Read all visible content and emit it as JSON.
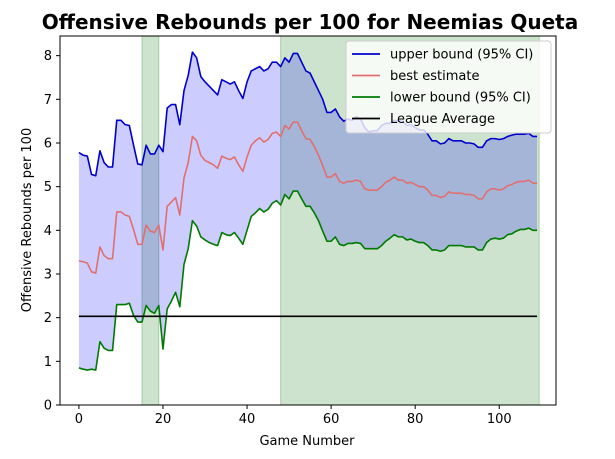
{
  "chart_data": {
    "type": "line",
    "title": "Offensive Rebounds per 100 for Neemias Queta",
    "xlabel": "Game Number",
    "ylabel": "Offensive Rebounds per 100",
    "xlim": [
      -4.5,
      113.5
    ],
    "ylim": [
      0,
      8.45
    ],
    "xticks": [
      0,
      20,
      40,
      60,
      80,
      100
    ],
    "yticks": [
      0,
      1,
      2,
      3,
      4,
      5,
      6,
      7,
      8
    ],
    "grid": false,
    "legend_position": "top-right",
    "x": [
      0,
      1,
      2,
      3,
      4,
      5,
      6,
      7,
      8,
      9,
      10,
      11,
      12,
      13,
      14,
      15,
      16,
      17,
      18,
      19,
      20,
      21,
      22,
      23,
      24,
      25,
      26,
      27,
      28,
      29,
      30,
      31,
      32,
      33,
      34,
      35,
      36,
      37,
      38,
      39,
      40,
      41,
      42,
      43,
      44,
      45,
      46,
      47,
      48,
      49,
      50,
      51,
      52,
      53,
      54,
      55,
      56,
      57,
      58,
      59,
      60,
      61,
      62,
      63,
      64,
      65,
      66,
      67,
      68,
      69,
      70,
      71,
      72,
      73,
      74,
      75,
      76,
      77,
      78,
      79,
      80,
      81,
      82,
      83,
      84,
      85,
      86,
      87,
      88,
      89,
      90,
      91,
      92,
      93,
      94,
      95,
      96,
      97,
      98,
      99,
      100,
      101,
      102,
      103,
      104,
      105,
      106,
      107,
      108,
      109
    ],
    "series": [
      {
        "name": "upper bound (95% CI)",
        "color": "#0000cc",
        "values": [
          5.78,
          5.72,
          5.7,
          5.28,
          5.25,
          5.82,
          5.55,
          5.45,
          5.45,
          6.52,
          6.52,
          6.42,
          6.4,
          5.95,
          5.52,
          5.5,
          5.95,
          5.75,
          5.75,
          5.95,
          5.8,
          6.8,
          6.88,
          6.88,
          6.42,
          7.2,
          7.55,
          8.08,
          7.95,
          7.52,
          7.4,
          7.3,
          7.2,
          7.1,
          7.45,
          7.4,
          7.35,
          7.4,
          7.2,
          7.02,
          7.4,
          7.65,
          7.7,
          7.75,
          7.65,
          7.7,
          7.85,
          7.85,
          7.75,
          7.95,
          7.85,
          8.05,
          8.05,
          7.85,
          7.65,
          7.6,
          7.4,
          7.2,
          7.0,
          6.7,
          6.7,
          6.78,
          6.6,
          6.5,
          6.55,
          6.52,
          6.6,
          6.55,
          6.35,
          6.25,
          6.28,
          6.28,
          6.4,
          6.45,
          6.45,
          6.52,
          6.5,
          6.5,
          6.4,
          6.42,
          6.35,
          6.3,
          6.3,
          6.2,
          6.05,
          6.05,
          5.98,
          6.0,
          6.1,
          6.05,
          6.05,
          6.05,
          6.0,
          6.0,
          5.98,
          5.9,
          5.9,
          6.05,
          6.1,
          6.1,
          6.08,
          6.1,
          6.15,
          6.18,
          6.2,
          6.2,
          6.2,
          6.22,
          6.15,
          6.15
        ]
      },
      {
        "name": "best estimate",
        "color": "#e07070",
        "values": [
          3.3,
          3.28,
          3.25,
          3.05,
          3.02,
          3.62,
          3.42,
          3.35,
          3.35,
          4.42,
          4.42,
          4.35,
          4.32,
          4.02,
          3.68,
          3.68,
          4.12,
          3.98,
          3.95,
          4.12,
          3.55,
          4.55,
          4.65,
          4.75,
          4.35,
          5.2,
          5.55,
          6.15,
          6.05,
          5.72,
          5.6,
          5.55,
          5.5,
          5.42,
          5.7,
          5.65,
          5.62,
          5.68,
          5.5,
          5.35,
          5.68,
          5.95,
          6.05,
          6.12,
          6.02,
          6.08,
          6.22,
          6.25,
          6.15,
          6.4,
          6.32,
          6.48,
          6.48,
          6.28,
          6.1,
          6.08,
          5.92,
          5.72,
          5.48,
          5.22,
          5.22,
          5.3,
          5.12,
          5.08,
          5.12,
          5.12,
          5.15,
          5.12,
          4.95,
          4.92,
          4.92,
          4.92,
          5.0,
          5.1,
          5.15,
          5.22,
          5.15,
          5.15,
          5.08,
          5.1,
          5.05,
          5.0,
          5.0,
          4.92,
          4.8,
          4.8,
          4.75,
          4.78,
          4.88,
          4.85,
          4.85,
          4.85,
          4.82,
          4.82,
          4.8,
          4.72,
          4.72,
          4.88,
          4.95,
          4.95,
          4.92,
          4.95,
          5.02,
          5.05,
          5.1,
          5.12,
          5.12,
          5.15,
          5.08,
          5.08
        ]
      },
      {
        "name": "lower bound (95% CI)",
        "color": "#007a00",
        "values": [
          0.85,
          0.82,
          0.8,
          0.82,
          0.8,
          1.45,
          1.3,
          1.25,
          1.25,
          2.3,
          2.3,
          2.3,
          2.33,
          2.05,
          1.9,
          1.9,
          2.28,
          2.15,
          2.1,
          2.28,
          1.28,
          2.2,
          2.38,
          2.58,
          2.25,
          3.22,
          3.58,
          4.22,
          4.1,
          3.85,
          3.78,
          3.72,
          3.68,
          3.65,
          3.95,
          3.9,
          3.88,
          3.95,
          3.82,
          3.68,
          4.0,
          4.32,
          4.4,
          4.5,
          4.42,
          4.48,
          4.62,
          4.68,
          4.58,
          4.82,
          4.72,
          4.9,
          4.9,
          4.72,
          4.55,
          4.55,
          4.4,
          4.22,
          3.98,
          3.75,
          3.75,
          3.85,
          3.68,
          3.65,
          3.7,
          3.7,
          3.72,
          3.7,
          3.58,
          3.58,
          3.58,
          3.58,
          3.65,
          3.75,
          3.82,
          3.9,
          3.85,
          3.85,
          3.78,
          3.8,
          3.75,
          3.72,
          3.72,
          3.65,
          3.55,
          3.55,
          3.52,
          3.55,
          3.65,
          3.65,
          3.65,
          3.65,
          3.62,
          3.62,
          3.62,
          3.55,
          3.55,
          3.72,
          3.8,
          3.82,
          3.8,
          3.82,
          3.9,
          3.92,
          3.98,
          4.02,
          4.02,
          4.05,
          4.0,
          4.0
        ]
      },
      {
        "name": "League Average",
        "color": "#000000",
        "values_constant": 2.03
      }
    ],
    "ci_fill_color": "#0000ff",
    "highlight_color": "#2e8b2e",
    "highlight_regions": [
      [
        15,
        19
      ],
      [
        48,
        109.5
      ]
    ]
  }
}
